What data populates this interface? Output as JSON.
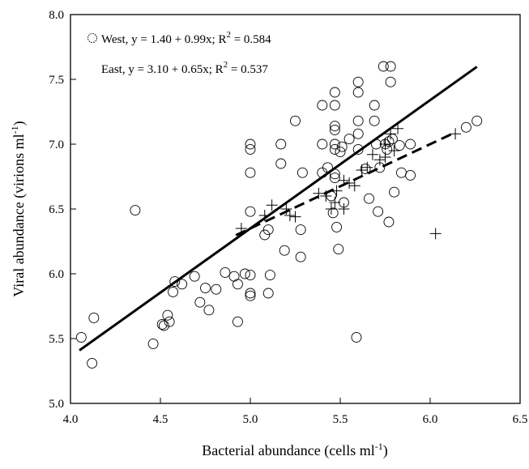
{
  "chart_data": {
    "type": "scatter",
    "xlabel": "Bacterial abundance (cells ml",
    "xlabel_sup": "-1",
    "xlabel_close": ")",
    "ylabel": "Viral abundance (virions ml",
    "ylabel_sup": "-1",
    "ylabel_close": ")",
    "xlim": [
      4.0,
      6.5
    ],
    "ylim": [
      5.0,
      8.0
    ],
    "x_ticks": [
      4.0,
      4.5,
      5.0,
      5.5,
      6.0,
      6.5
    ],
    "x_tick_labels": [
      "4.0",
      "4.5",
      "5.0",
      "5.5",
      "6.0",
      "6.5"
    ],
    "y_ticks": [
      5.0,
      5.5,
      6.0,
      6.5,
      7.0,
      7.5,
      8.0
    ],
    "y_tick_labels": [
      "5.0",
      "5.5",
      "6.0",
      "6.5",
      "7.0",
      "7.5",
      "8.0"
    ],
    "grid": false,
    "legend_position": "top-left",
    "legend": [
      {
        "marker": "circle",
        "text_main": "West,  y = 1.40 + 0.99x;  R",
        "text_sup": "2",
        "text_tail": " = 0.584"
      },
      {
        "marker": "none",
        "text_main": "East,  y =  3.10 + 0.65x;  R",
        "text_sup": "2",
        "text_tail": " = 0.537"
      }
    ],
    "series": [
      {
        "name": "West",
        "marker": "circle",
        "points": [
          [
            4.06,
            5.51
          ],
          [
            4.12,
            5.31
          ],
          [
            4.13,
            5.66
          ],
          [
            4.36,
            6.49
          ],
          [
            4.46,
            5.46
          ],
          [
            4.51,
            5.61
          ],
          [
            4.52,
            5.6
          ],
          [
            4.54,
            5.68
          ],
          [
            4.55,
            5.63
          ],
          [
            4.57,
            5.86
          ],
          [
            4.58,
            5.94
          ],
          [
            4.62,
            5.92
          ],
          [
            4.69,
            5.98
          ],
          [
            4.72,
            5.78
          ],
          [
            4.75,
            5.89
          ],
          [
            4.77,
            5.72
          ],
          [
            4.81,
            5.88
          ],
          [
            4.86,
            6.01
          ],
          [
            4.91,
            5.98
          ],
          [
            4.93,
            5.92
          ],
          [
            4.93,
            5.63
          ],
          [
            4.97,
            6.0
          ],
          [
            5.0,
            5.83
          ],
          [
            5.0,
            5.85
          ],
          [
            5.0,
            5.99
          ],
          [
            5.0,
            6.48
          ],
          [
            5.0,
            6.78
          ],
          [
            5.0,
            6.96
          ],
          [
            5.0,
            7.0
          ],
          [
            5.08,
            6.3
          ],
          [
            5.1,
            6.34
          ],
          [
            5.1,
            5.85
          ],
          [
            5.11,
            5.99
          ],
          [
            5.17,
            6.85
          ],
          [
            5.17,
            7.0
          ],
          [
            5.19,
            6.18
          ],
          [
            5.25,
            7.18
          ],
          [
            5.28,
            6.34
          ],
          [
            5.28,
            6.13
          ],
          [
            5.29,
            6.78
          ],
          [
            5.4,
            7.3
          ],
          [
            5.4,
            7.0
          ],
          [
            5.4,
            6.78
          ],
          [
            5.43,
            6.82
          ],
          [
            5.45,
            6.6
          ],
          [
            5.46,
            6.47
          ],
          [
            5.47,
            6.77
          ],
          [
            5.47,
            6.74
          ],
          [
            5.47,
            6.96
          ],
          [
            5.47,
            7.0
          ],
          [
            5.47,
            7.11
          ],
          [
            5.47,
            7.14
          ],
          [
            5.47,
            7.3
          ],
          [
            5.47,
            7.4
          ],
          [
            5.48,
            6.36
          ],
          [
            5.49,
            6.19
          ],
          [
            5.5,
            6.94
          ],
          [
            5.51,
            6.98
          ],
          [
            5.52,
            6.55
          ],
          [
            5.55,
            7.04
          ],
          [
            5.59,
            5.51
          ],
          [
            5.6,
            6.96
          ],
          [
            5.6,
            7.08
          ],
          [
            5.6,
            7.18
          ],
          [
            5.6,
            7.4
          ],
          [
            5.6,
            7.48
          ],
          [
            5.64,
            6.81
          ],
          [
            5.66,
            6.58
          ],
          [
            5.69,
            7.3
          ],
          [
            5.69,
            7.18
          ],
          [
            5.7,
            7.0
          ],
          [
            5.71,
            6.48
          ],
          [
            5.72,
            6.82
          ],
          [
            5.74,
            7.6
          ],
          [
            5.75,
            7.0
          ],
          [
            5.76,
            6.96
          ],
          [
            5.77,
            6.4
          ],
          [
            5.77,
            7.02
          ],
          [
            5.78,
            7.48
          ],
          [
            5.78,
            7.6
          ],
          [
            5.79,
            7.04
          ],
          [
            5.8,
            6.63
          ],
          [
            5.83,
            6.99
          ],
          [
            5.84,
            6.78
          ],
          [
            5.89,
            7.0
          ],
          [
            5.89,
            6.76
          ],
          [
            6.2,
            7.13
          ],
          [
            6.26,
            7.18
          ]
        ]
      },
      {
        "name": "East",
        "marker": "plus",
        "points": [
          [
            4.95,
            6.35
          ],
          [
            5.08,
            6.45
          ],
          [
            5.12,
            6.53
          ],
          [
            5.2,
            6.5
          ],
          [
            5.22,
            6.45
          ],
          [
            5.25,
            6.44
          ],
          [
            5.38,
            6.62
          ],
          [
            5.42,
            6.6
          ],
          [
            5.45,
            6.5
          ],
          [
            5.47,
            6.55
          ],
          [
            5.48,
            6.64
          ],
          [
            5.52,
            6.5
          ],
          [
            5.52,
            6.72
          ],
          [
            5.55,
            6.7
          ],
          [
            5.58,
            6.68
          ],
          [
            5.62,
            6.8
          ],
          [
            5.65,
            6.82
          ],
          [
            5.68,
            6.92
          ],
          [
            5.72,
            6.88
          ],
          [
            5.75,
            6.9
          ],
          [
            5.75,
            7.0
          ],
          [
            5.78,
            7.08
          ],
          [
            5.8,
            6.95
          ],
          [
            5.82,
            7.12
          ],
          [
            6.03,
            6.31
          ],
          [
            6.14,
            7.08
          ]
        ]
      }
    ],
    "fit_lines": [
      {
        "series": "West",
        "style": "solid",
        "x_start": 4.05,
        "x_end": 6.26,
        "intercept": 1.4,
        "slope": 0.99
      },
      {
        "series": "East",
        "style": "dashed",
        "x_start": 4.92,
        "x_end": 6.12,
        "intercept": 3.1,
        "slope": 0.65
      }
    ]
  }
}
